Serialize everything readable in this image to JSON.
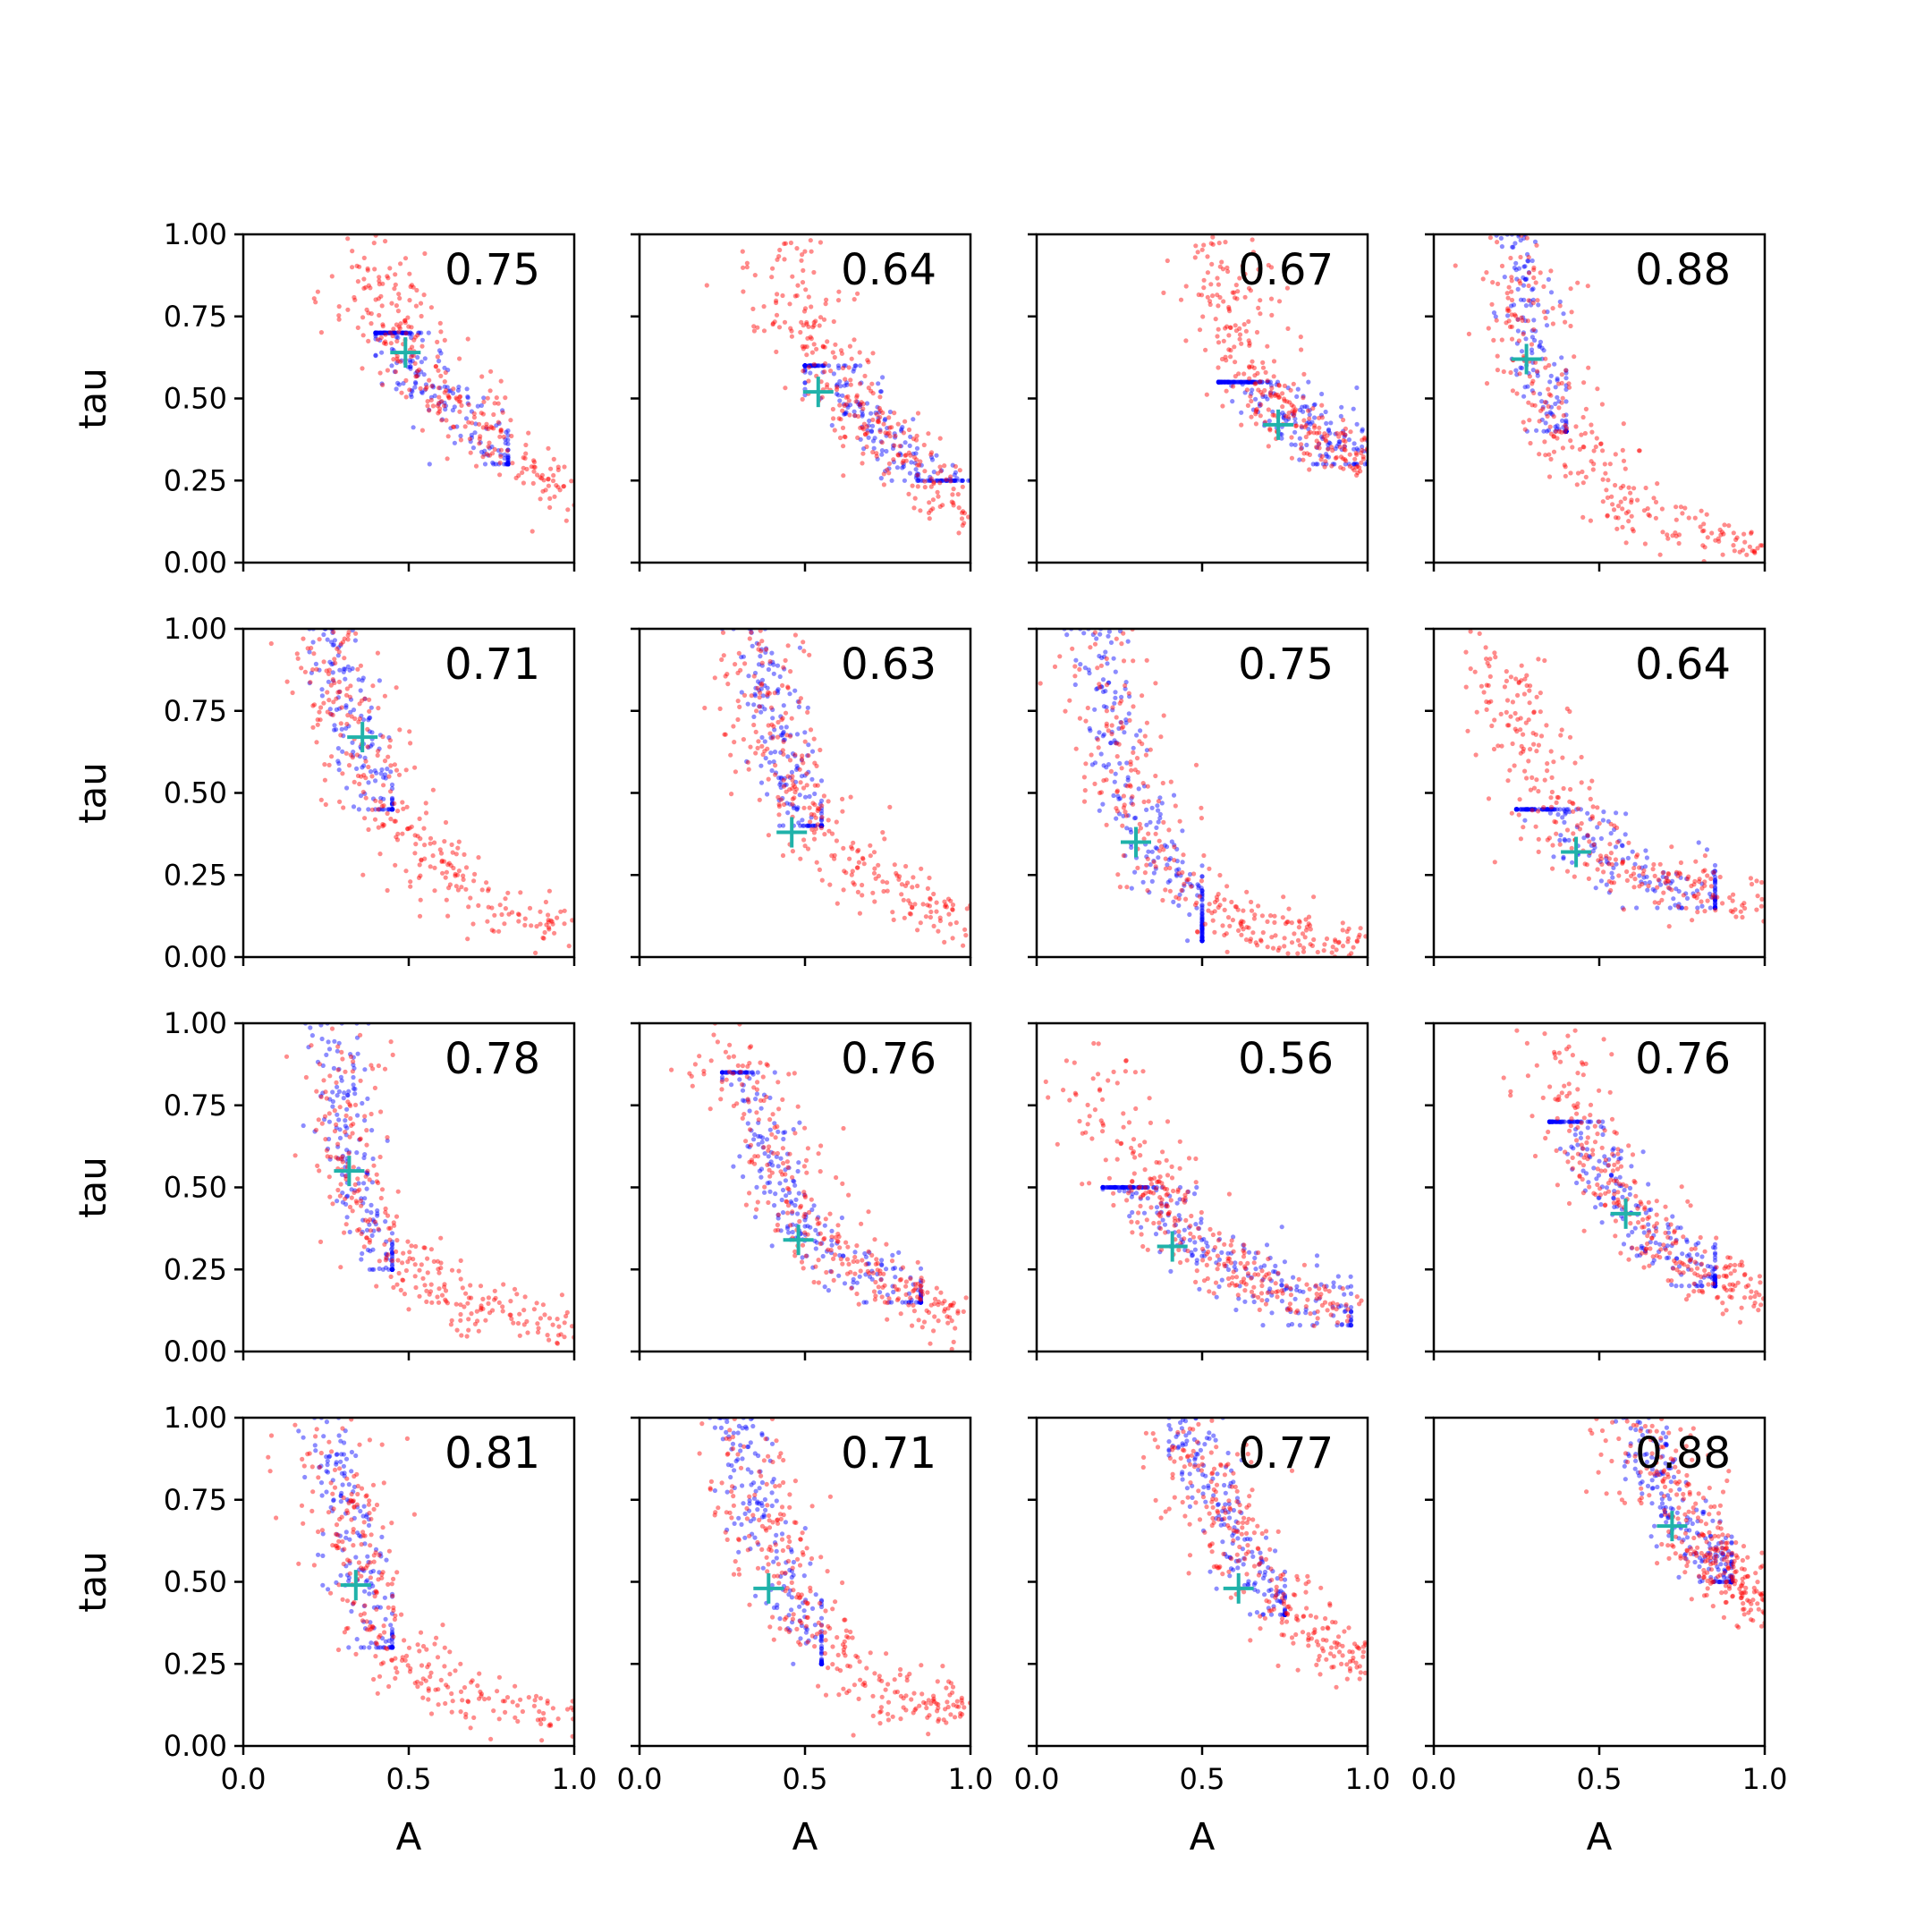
{
  "colors": {
    "series_blue": "#0000ff",
    "series_red": "#ff0000",
    "center_marker": "#20b2aa",
    "axes": "#000000"
  },
  "chart_data": {
    "type": "scatter",
    "layout": "4x4 grid of subplots, shared axes",
    "xlabel": "A",
    "ylabel": "tau",
    "xlim": [
      0,
      1
    ],
    "ylim": [
      0,
      1
    ],
    "x_ticks": [
      "0.0",
      "0.5",
      "1.0"
    ],
    "y_ticks": [
      "0.00",
      "0.25",
      "0.50",
      "0.75",
      "1.00"
    ],
    "grid": false,
    "series": [
      {
        "color": "blue",
        "marker": "dot",
        "alpha": 0.5
      },
      {
        "color": "red",
        "marker": "dot",
        "alpha": 0.5
      }
    ],
    "subplots": [
      {
        "label": "0.75",
        "marker": [
          0.49,
          0.64
        ],
        "blue_cloud": {
          "x": [
            0.4,
            0.8
          ],
          "y": [
            0.3,
            0.7
          ]
        },
        "red_curve": [
          [
            0.37,
            1.0
          ],
          [
            0.45,
            0.75
          ],
          [
            0.55,
            0.55
          ],
          [
            0.75,
            0.37
          ],
          [
            1.0,
            0.18
          ]
        ]
      },
      {
        "label": "0.64",
        "marker": [
          0.54,
          0.52
        ],
        "blue_cloud": {
          "x": [
            0.5,
            1.0
          ],
          "y": [
            0.25,
            0.6
          ]
        },
        "red_curve": [
          [
            0.4,
            1.0
          ],
          [
            0.5,
            0.72
          ],
          [
            0.62,
            0.5
          ],
          [
            0.8,
            0.33
          ],
          [
            1.0,
            0.12
          ]
        ]
      },
      {
        "label": "0.67",
        "marker": [
          0.73,
          0.42
        ],
        "blue_cloud": {
          "x": [
            0.55,
            1.0
          ],
          "y": [
            0.3,
            0.55
          ]
        },
        "red_curve": [
          [
            0.5,
            1.0
          ],
          [
            0.58,
            0.75
          ],
          [
            0.68,
            0.52
          ],
          [
            0.85,
            0.38
          ],
          [
            1.0,
            0.32
          ]
        ]
      },
      {
        "label": "0.88",
        "marker": [
          0.28,
          0.62
        ],
        "blue_cloud": {
          "x": [
            0.15,
            0.4
          ],
          "y": [
            0.4,
            1.0
          ]
        },
        "red_curve": [
          [
            0.25,
            1.0
          ],
          [
            0.28,
            0.7
          ],
          [
            0.38,
            0.4
          ],
          [
            0.6,
            0.15
          ],
          [
            1.0,
            0.03
          ]
        ]
      },
      {
        "label": "0.71",
        "marker": [
          0.36,
          0.67
        ],
        "blue_cloud": {
          "x": [
            0.2,
            0.45
          ],
          "y": [
            0.45,
            1.0
          ]
        },
        "red_curve": [
          [
            0.25,
            1.0
          ],
          [
            0.33,
            0.7
          ],
          [
            0.45,
            0.4
          ],
          [
            0.7,
            0.2
          ],
          [
            1.0,
            0.05
          ]
        ]
      },
      {
        "label": "0.63",
        "marker": [
          0.46,
          0.38
        ],
        "blue_cloud": {
          "x": [
            0.25,
            0.55
          ],
          "y": [
            0.4,
            1.0
          ]
        },
        "red_curve": [
          [
            0.33,
            1.0
          ],
          [
            0.4,
            0.7
          ],
          [
            0.5,
            0.42
          ],
          [
            0.75,
            0.22
          ],
          [
            1.0,
            0.08
          ]
        ]
      },
      {
        "label": "0.75",
        "marker": [
          0.3,
          0.35
        ],
        "blue_cloud": {
          "x": [
            0.05,
            0.5
          ],
          "y": [
            0.05,
            1.0
          ]
        },
        "red_curve": [
          [
            0.18,
            1.0
          ],
          [
            0.25,
            0.6
          ],
          [
            0.4,
            0.25
          ],
          [
            0.65,
            0.08
          ],
          [
            1.0,
            0.04
          ]
        ]
      },
      {
        "label": "0.64",
        "marker": [
          0.43,
          0.32
        ],
        "blue_cloud": {
          "x": [
            0.25,
            0.85
          ],
          "y": [
            0.15,
            0.45
          ]
        },
        "red_curve": [
          [
            0.2,
            0.95
          ],
          [
            0.3,
            0.6
          ],
          [
            0.45,
            0.35
          ],
          [
            0.7,
            0.22
          ],
          [
            1.0,
            0.15
          ]
        ]
      },
      {
        "label": "0.78",
        "marker": [
          0.32,
          0.55
        ],
        "blue_cloud": {
          "x": [
            0.15,
            0.45
          ],
          "y": [
            0.25,
            1.0
          ]
        },
        "red_curve": [
          [
            0.27,
            1.0
          ],
          [
            0.32,
            0.65
          ],
          [
            0.4,
            0.32
          ],
          [
            0.65,
            0.15
          ],
          [
            1.0,
            0.07
          ]
        ]
      },
      {
        "label": "0.76",
        "marker": [
          0.48,
          0.34
        ],
        "blue_cloud": {
          "x": [
            0.25,
            0.85
          ],
          "y": [
            0.15,
            0.85
          ]
        },
        "red_curve": [
          [
            0.28,
            1.0
          ],
          [
            0.38,
            0.65
          ],
          [
            0.5,
            0.37
          ],
          [
            0.75,
            0.2
          ],
          [
            1.0,
            0.1
          ]
        ]
      },
      {
        "label": "0.56",
        "marker": [
          0.41,
          0.32
        ],
        "blue_cloud": {
          "x": [
            0.2,
            0.95
          ],
          "y": [
            0.08,
            0.5
          ]
        },
        "red_curve": [
          [
            0.2,
            0.85
          ],
          [
            0.3,
            0.55
          ],
          [
            0.45,
            0.35
          ],
          [
            0.7,
            0.2
          ],
          [
            1.0,
            0.1
          ]
        ]
      },
      {
        "label": "0.76",
        "marker": [
          0.58,
          0.42
        ],
        "blue_cloud": {
          "x": [
            0.35,
            0.85
          ],
          "y": [
            0.2,
            0.7
          ]
        },
        "red_curve": [
          [
            0.33,
            1.0
          ],
          [
            0.45,
            0.65
          ],
          [
            0.58,
            0.42
          ],
          [
            0.8,
            0.25
          ],
          [
            1.0,
            0.16
          ]
        ]
      },
      {
        "label": "0.81",
        "marker": [
          0.34,
          0.49
        ],
        "blue_cloud": {
          "x": [
            0.15,
            0.45
          ],
          "y": [
            0.3,
            1.0
          ]
        },
        "red_curve": [
          [
            0.25,
            1.0
          ],
          [
            0.32,
            0.65
          ],
          [
            0.42,
            0.32
          ],
          [
            0.65,
            0.15
          ],
          [
            1.0,
            0.08
          ]
        ]
      },
      {
        "label": "0.71",
        "marker": [
          0.39,
          0.48
        ],
        "blue_cloud": {
          "x": [
            0.2,
            0.55
          ],
          "y": [
            0.25,
            1.0
          ]
        },
        "red_curve": [
          [
            0.28,
            1.0
          ],
          [
            0.36,
            0.7
          ],
          [
            0.48,
            0.4
          ],
          [
            0.7,
            0.18
          ],
          [
            1.0,
            0.1
          ]
        ]
      },
      {
        "label": "0.77",
        "marker": [
          0.61,
          0.48
        ],
        "blue_cloud": {
          "x": [
            0.4,
            0.75
          ],
          "y": [
            0.4,
            1.0
          ]
        },
        "red_curve": [
          [
            0.42,
            1.0
          ],
          [
            0.55,
            0.75
          ],
          [
            0.65,
            0.52
          ],
          [
            0.85,
            0.33
          ],
          [
            1.0,
            0.22
          ]
        ]
      },
      {
        "label": "0.88",
        "marker": [
          0.72,
          0.67
        ],
        "blue_cloud": {
          "x": [
            0.55,
            0.9
          ],
          "y": [
            0.5,
            1.0
          ]
        },
        "red_curve": [
          [
            0.6,
            1.0
          ],
          [
            0.68,
            0.8
          ],
          [
            0.78,
            0.62
          ],
          [
            0.9,
            0.52
          ],
          [
            1.0,
            0.4
          ]
        ]
      }
    ]
  }
}
